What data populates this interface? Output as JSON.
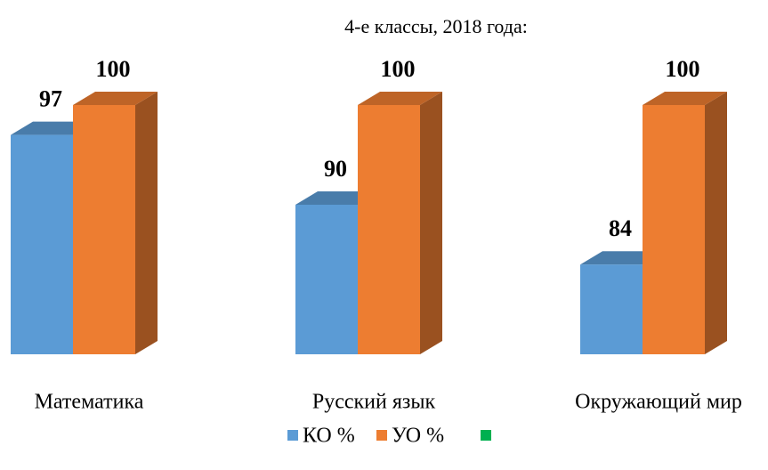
{
  "chart_data": {
    "type": "bar3d",
    "title": "4-е классы, 2018 года:",
    "categories": [
      "Математика",
      "Русский язык",
      "Окружающий мир"
    ],
    "series": [
      {
        "name": "КО %",
        "color": "#5b9bd5",
        "values": [
          97,
          90,
          84
        ]
      },
      {
        "name": "УО %",
        "color": "#ed7d31",
        "values": [
          100,
          100,
          100
        ]
      },
      {
        "name": null,
        "color": "#00b050",
        "values": [
          null,
          null,
          null
        ]
      }
    ],
    "ylim": [
      75,
      100
    ]
  }
}
